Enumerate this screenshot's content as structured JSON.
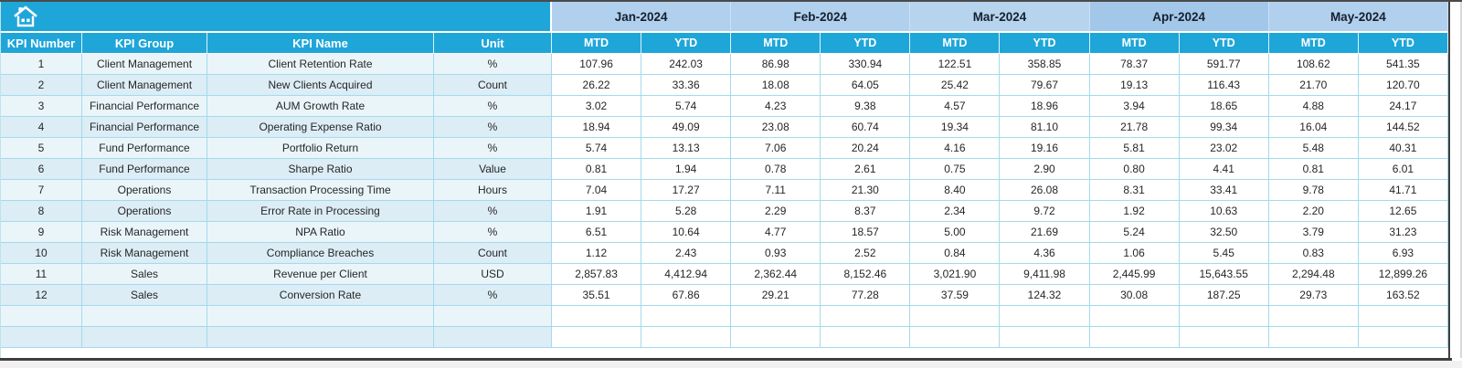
{
  "sheet": {
    "corner_icon": "home-icon",
    "months": [
      {
        "label": "Jan-2024",
        "color": "#b1d0ed"
      },
      {
        "label": "Feb-2024",
        "color": "#b1d0ed"
      },
      {
        "label": "Mar-2024",
        "color": "#b7d4ef"
      },
      {
        "label": "Apr-2024",
        "color": "#a3c7e9"
      },
      {
        "label": "May-2024",
        "color": "#b1d0ed"
      }
    ],
    "table": {
      "left_headers": [
        "KPI Number",
        "KPI Group",
        "KPI Name",
        "Unit"
      ],
      "sub_headers": [
        "MTD",
        "YTD"
      ],
      "rows": [
        {
          "kpi_number": "1",
          "kpi_group": "Client Management",
          "kpi_name": "Client Retention Rate",
          "unit": "%",
          "values": [
            "107.96",
            "242.03",
            "86.98",
            "330.94",
            "122.51",
            "358.85",
            "78.37",
            "591.77",
            "108.62",
            "541.35"
          ]
        },
        {
          "kpi_number": "2",
          "kpi_group": "Client Management",
          "kpi_name": "New Clients Acquired",
          "unit": "Count",
          "values": [
            "26.22",
            "33.36",
            "18.08",
            "64.05",
            "25.42",
            "79.67",
            "19.13",
            "116.43",
            "21.70",
            "120.70"
          ]
        },
        {
          "kpi_number": "3",
          "kpi_group": "Financial Performance",
          "kpi_name": "AUM Growth Rate",
          "unit": "%",
          "values": [
            "3.02",
            "5.74",
            "4.23",
            "9.38",
            "4.57",
            "18.96",
            "3.94",
            "18.65",
            "4.88",
            "24.17"
          ]
        },
        {
          "kpi_number": "4",
          "kpi_group": "Financial Performance",
          "kpi_name": "Operating Expense Ratio",
          "unit": "%",
          "values": [
            "18.94",
            "49.09",
            "23.08",
            "60.74",
            "19.34",
            "81.10",
            "21.78",
            "99.34",
            "16.04",
            "144.52"
          ]
        },
        {
          "kpi_number": "5",
          "kpi_group": "Fund Performance",
          "kpi_name": "Portfolio Return",
          "unit": "%",
          "values": [
            "5.74",
            "13.13",
            "7.06",
            "20.24",
            "4.16",
            "19.16",
            "5.81",
            "23.02",
            "5.48",
            "40.31"
          ]
        },
        {
          "kpi_number": "6",
          "kpi_group": "Fund Performance",
          "kpi_name": "Sharpe Ratio",
          "unit": "Value",
          "values": [
            "0.81",
            "1.94",
            "0.78",
            "2.61",
            "0.75",
            "2.90",
            "0.80",
            "4.41",
            "0.81",
            "6.01"
          ]
        },
        {
          "kpi_number": "7",
          "kpi_group": "Operations",
          "kpi_name": "Transaction Processing Time",
          "unit": "Hours",
          "values": [
            "7.04",
            "17.27",
            "7.11",
            "21.30",
            "8.40",
            "26.08",
            "8.31",
            "33.41",
            "9.78",
            "41.71"
          ]
        },
        {
          "kpi_number": "8",
          "kpi_group": "Operations",
          "kpi_name": "Error Rate in Processing",
          "unit": "%",
          "values": [
            "1.91",
            "5.28",
            "2.29",
            "8.37",
            "2.34",
            "9.72",
            "1.92",
            "10.63",
            "2.20",
            "12.65"
          ]
        },
        {
          "kpi_number": "9",
          "kpi_group": "Risk Management",
          "kpi_name": "NPA Ratio",
          "unit": "%",
          "values": [
            "6.51",
            "10.64",
            "4.77",
            "18.57",
            "5.00",
            "21.69",
            "5.24",
            "32.50",
            "3.79",
            "31.23"
          ]
        },
        {
          "kpi_number": "10",
          "kpi_group": "Risk Management",
          "kpi_name": "Compliance Breaches",
          "unit": "Count",
          "values": [
            "1.12",
            "2.43",
            "0.93",
            "2.52",
            "0.84",
            "4.36",
            "1.06",
            "5.45",
            "0.83",
            "6.93"
          ]
        },
        {
          "kpi_number": "11",
          "kpi_group": "Sales",
          "kpi_name": "Revenue per Client",
          "unit": "USD",
          "values": [
            "2,857.83",
            "4,412.94",
            "2,362.44",
            "8,152.46",
            "3,021.90",
            "9,411.98",
            "2,445.99",
            "15,643.55",
            "2,294.48",
            "12,899.26"
          ]
        },
        {
          "kpi_number": "12",
          "kpi_group": "Sales",
          "kpi_name": "Conversion Rate",
          "unit": "%",
          "values": [
            "35.51",
            "67.86",
            "29.21",
            "77.28",
            "37.59",
            "124.32",
            "30.08",
            "187.25",
            "29.73",
            "163.52"
          ]
        }
      ],
      "empty_row_count": 2
    },
    "colors": {
      "header_cyan": "#1fa6d9",
      "grid_line": "#a3daec",
      "row_tint": "#eaf5fa",
      "row_tint_alt": "#dcedf5",
      "sheet_edge_dark": "#3f3f3f"
    }
  }
}
